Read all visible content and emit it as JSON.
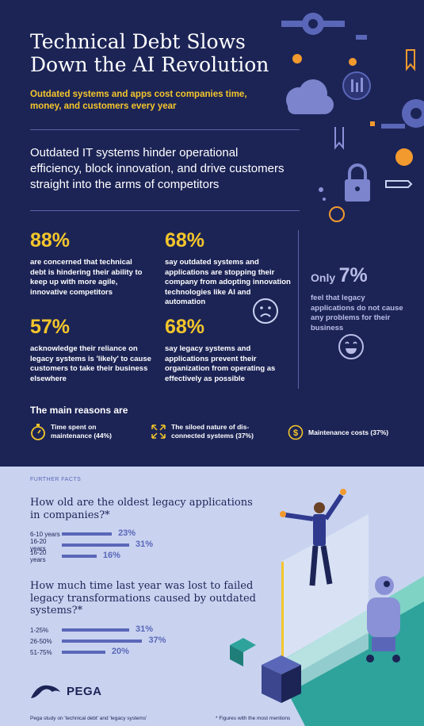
{
  "header": {
    "title": "Technical Debt Slows Down the AI Revolution",
    "subtitle": "Outdated systems and apps cost companies time, money, and customers every year",
    "intro": "Outdated IT systems hinder operational efficiency, block innovation, and drive customers straight into the arms of competitors"
  },
  "stats": [
    {
      "pct": "88%",
      "text": "are concerned that technical debt is hindering their ability to keep up with more agile, innovative competitors"
    },
    {
      "pct": "68%",
      "text": "say outdated systems and applications are stopping their company from adopting innovation technologies like AI and automation"
    },
    {
      "pct": "57%",
      "text": "acknowledge their reliance on legacy systems is 'likely' to cause customers to take their business elsewhere"
    },
    {
      "pct": "68%",
      "text": "say legacy systems and applications prevent their organization from operating as effectively as possible"
    }
  ],
  "only": {
    "label": "Only",
    "pct": "7%",
    "text": "feel that legacy applications do not cause any problems for their business"
  },
  "reasons": {
    "heading": "The main reasons are",
    "items": [
      {
        "icon": "stopwatch-icon",
        "text": "Time spent on maintenance (44%)"
      },
      {
        "icon": "arrows-icon",
        "text": "The siloed nature of dis-connected systems (37%)"
      },
      {
        "icon": "dollar-icon",
        "text": "Maintenance costs (37%)"
      }
    ]
  },
  "further": {
    "label": "FURTHER FACTS",
    "q1": "How old are the oldest legacy applications in companies?*",
    "q2": "How much time last year was lost to failed legacy transformations caused by outdated systems?*"
  },
  "chart_data": [
    {
      "type": "bar",
      "categories": [
        "6-10 years",
        "16-20 years",
        "16-20 years"
      ],
      "values": [
        23,
        31,
        16
      ],
      "labels": [
        "23%",
        "31%",
        "16%"
      ]
    },
    {
      "type": "bar",
      "categories": [
        "1-25%",
        "26-50%",
        "51-75%"
      ],
      "values": [
        31,
        37,
        20
      ],
      "labels": [
        "31%",
        "37%",
        "20%"
      ]
    }
  ],
  "logo": {
    "text": "PEGA"
  },
  "footer": {
    "source": "Pega study on 'technical debt' and 'legacy systems'",
    "note": "* Figures with the most mentions"
  },
  "colors": {
    "navy": "#1c2456",
    "yellow": "#f4c62b",
    "periwinkle": "#5a67b8",
    "light": "#c9d3f0",
    "orange": "#f29a2e"
  }
}
